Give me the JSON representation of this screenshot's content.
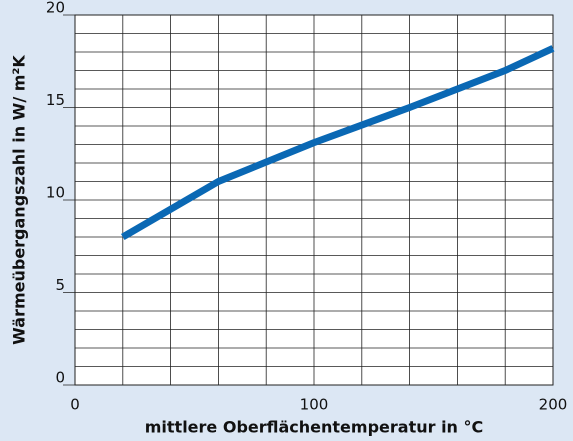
{
  "chart_data": {
    "type": "line",
    "xlabel": "mittlere Oberflächentemperatur in °C",
    "ylabel": "Wärmeübergangszahl in W/ m²K",
    "x": [
      20,
      60,
      100,
      140,
      180,
      200
    ],
    "series": [
      {
        "name": "Wärmeübergangszahl",
        "color": "#0a68b4",
        "values": [
          8,
          11,
          13.1,
          15,
          17,
          18.2
        ]
      }
    ],
    "xlim": [
      0,
      200
    ],
    "xticks": [
      0,
      100,
      200
    ],
    "ylim": [
      0,
      20
    ],
    "yticks": [
      0,
      5,
      10,
      15,
      20
    ],
    "grid": true
  }
}
